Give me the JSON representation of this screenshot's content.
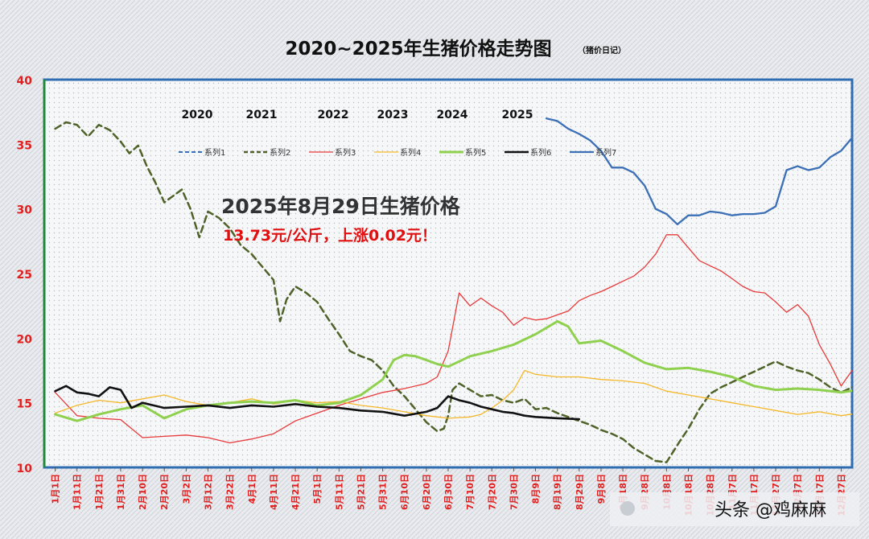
{
  "title": "2020~2025年生猪价格走势图",
  "title_note": "（猪价日记）",
  "announcement": {
    "line1": "2025年8月29日生猪价格",
    "line2": "13.73元/公斤，上涨0.02元！"
  },
  "watermark": "头条 @鸡麻麻",
  "year_labels": [
    "2020",
    "2021",
    "2022",
    "2023",
    "2024",
    "2025"
  ],
  "colors": {
    "background": "#e4e6ea",
    "plot_border": "#2f6db3",
    "y_axis": "#1f8a3a",
    "y_tick_text": "#e01f1f",
    "x_tick_text": "#e01f1f",
    "announce_red": "#e01010"
  },
  "chart_data": {
    "type": "line",
    "ylim": [
      10,
      40
    ],
    "yticks": [
      10,
      15,
      20,
      25,
      30,
      35,
      40
    ],
    "x_labels": [
      "1月1日",
      "1月11日",
      "1月21日",
      "1月31日",
      "2月10日",
      "2月20日",
      "3月2日",
      "3月12日",
      "3月22日",
      "4月1日",
      "4月11日",
      "4月21日",
      "5月1日",
      "5月11日",
      "5月21日",
      "5月31日",
      "6月10日",
      "6月20日",
      "6月30日",
      "7月10日",
      "7月20日",
      "7月30日",
      "8月9日",
      "8月19日",
      "8月29日",
      "9月8日",
      "9月18日",
      "9月28日",
      "10月8日",
      "10月18日",
      "10月28日",
      "11月7日",
      "11月17日",
      "11月27日",
      "12月7日",
      "12月17日",
      "12月27日"
    ],
    "grid": false,
    "legend_position": "top",
    "series": [
      {
        "name": "系列1",
        "color": "#3b6fb6",
        "dash": "6,4",
        "width": 2,
        "x": [],
        "y": []
      },
      {
        "name": "系列2",
        "color": "#4f6228",
        "dash": "8,5",
        "width": 2.5,
        "x": [
          0,
          0.5,
          1,
          1.5,
          2,
          2.5,
          3,
          3.4,
          3.8,
          4.2,
          4.6,
          5,
          5.4,
          5.8,
          6.2,
          6.6,
          7,
          7.5,
          8,
          8.5,
          9,
          9.5,
          10,
          10.3,
          10.6,
          11,
          11.5,
          12,
          12.5,
          13,
          13.5,
          14,
          14.5,
          15,
          15.5,
          16,
          16.5,
          17,
          17.5,
          17.8,
          18,
          18.2,
          18.5,
          19,
          19.5,
          20,
          20.5,
          21,
          21.5,
          22,
          22.5,
          23,
          23.5,
          24,
          24.5,
          25,
          25.5,
          26,
          26.5,
          27,
          27.5,
          28,
          28.3,
          28.6,
          29,
          29.5,
          30,
          30.5,
          31,
          31.5,
          32,
          32.5,
          33,
          33.5,
          34,
          34.5,
          35,
          35.5,
          36,
          36.5,
          36.8
        ],
        "y": [
          36.2,
          36.7,
          36.5,
          35.6,
          36.5,
          36.1,
          35.2,
          34.3,
          34.9,
          33.3,
          32.0,
          30.5,
          31.0,
          31.5,
          30.0,
          27.8,
          29.8,
          29.3,
          28.5,
          27.2,
          26.5,
          25.5,
          24.5,
          21.3,
          23.0,
          24.0,
          23.5,
          22.8,
          21.5,
          20.3,
          19.0,
          18.6,
          18.3,
          17.5,
          16.3,
          15.5,
          14.5,
          13.5,
          12.8,
          13.0,
          14.0,
          16.0,
          16.5,
          16.0,
          15.5,
          15.6,
          15.2,
          15.0,
          15.3,
          14.5,
          14.6,
          14.2,
          13.9,
          13.6,
          13.3,
          12.9,
          12.6,
          12.2,
          11.5,
          11.0,
          10.5,
          10.4,
          11.2,
          12.0,
          13.0,
          14.5,
          15.7,
          16.2,
          16.6,
          17.0,
          17.4,
          17.8,
          18.2,
          17.8,
          17.5,
          17.3,
          16.8,
          16.2,
          15.8,
          16.2,
          16.0
        ]
      },
      {
        "name": "系列3",
        "color": "#e83a3a",
        "dash": "",
        "width": 1.3,
        "x": [
          0,
          1,
          2,
          3,
          4,
          5,
          6,
          7,
          8,
          9,
          10,
          11,
          12,
          13,
          14,
          15,
          16,
          17,
          17.5,
          18,
          18.5,
          19,
          19.5,
          20,
          20.5,
          21,
          21.5,
          22,
          22.5,
          23,
          23.5,
          24,
          24.5,
          25,
          25.5,
          26,
          26.5,
          27,
          27.5,
          28,
          28.5,
          29,
          29.5,
          30,
          30.5,
          31,
          31.5,
          32,
          32.5,
          33,
          33.5,
          34,
          34.5,
          35,
          35.5,
          36,
          36.5,
          36.8
        ],
        "y": [
          15.8,
          14.0,
          13.8,
          13.7,
          12.3,
          12.4,
          12.5,
          12.3,
          11.9,
          12.2,
          12.6,
          13.6,
          14.2,
          14.8,
          15.3,
          15.8,
          16.1,
          16.5,
          17.0,
          19.0,
          23.5,
          22.5,
          23.1,
          22.5,
          22.0,
          21.0,
          21.6,
          21.4,
          21.5,
          21.8,
          22.1,
          22.9,
          23.3,
          23.6,
          24.0,
          24.4,
          24.8,
          25.5,
          26.5,
          28.0,
          28.0,
          27.0,
          26.0,
          25.6,
          25.2,
          24.6,
          24.0,
          23.6,
          23.5,
          22.8,
          22.0,
          22.6,
          21.7,
          19.5,
          18.0,
          16.3,
          17.5,
          16.5
        ]
      },
      {
        "name": "系列4",
        "color": "#f5b82a",
        "dash": "",
        "width": 1.3,
        "x": [
          0,
          1,
          2,
          3,
          4,
          5,
          6,
          7,
          8,
          9,
          10,
          11,
          12,
          13,
          14,
          15,
          16,
          17,
          18,
          19,
          19.5,
          20,
          20.5,
          21,
          21.5,
          22,
          23,
          24,
          25,
          26,
          27,
          28,
          29,
          30,
          31,
          32,
          33,
          34,
          35,
          36,
          36.8
        ],
        "y": [
          14.2,
          14.8,
          15.2,
          15.0,
          15.3,
          15.6,
          15.1,
          14.8,
          15.0,
          15.3,
          14.9,
          15.2,
          15.0,
          15.1,
          14.8,
          14.6,
          14.3,
          14.0,
          13.8,
          13.9,
          14.1,
          14.6,
          15.2,
          16.0,
          17.5,
          17.2,
          17.0,
          17.0,
          16.8,
          16.7,
          16.5,
          15.9,
          15.6,
          15.3,
          15.0,
          14.7,
          14.4,
          14.1,
          14.3,
          14.0,
          14.2
        ]
      },
      {
        "name": "系列5",
        "color": "#8fd14f",
        "dash": "",
        "width": 3,
        "x": [
          0,
          1,
          2,
          3,
          4,
          5,
          6,
          7,
          8,
          9,
          10,
          11,
          12,
          13,
          14,
          15,
          15.5,
          16,
          16.5,
          17,
          17.5,
          18,
          18.5,
          19,
          20,
          21,
          22,
          23,
          23.5,
          24,
          25,
          26,
          27,
          28,
          29,
          30,
          31,
          32,
          33,
          34,
          35,
          36,
          36.8
        ],
        "y": [
          14.1,
          13.6,
          14.1,
          14.5,
          14.8,
          13.8,
          14.5,
          14.8,
          15.0,
          15.1,
          15.0,
          15.2,
          14.8,
          15.0,
          15.6,
          16.8,
          18.3,
          18.7,
          18.6,
          18.3,
          18.0,
          17.8,
          18.2,
          18.6,
          19.0,
          19.5,
          20.3,
          21.3,
          20.9,
          19.6,
          19.8,
          19.0,
          18.1,
          17.6,
          17.7,
          17.4,
          17.0,
          16.3,
          16.0,
          16.1,
          16.0,
          15.8,
          16.0
        ]
      },
      {
        "name": "系列6",
        "color": "#111111",
        "dash": "",
        "width": 2.6,
        "x": [
          0,
          0.5,
          1,
          1.5,
          2,
          2.5,
          3,
          3.5,
          4,
          4.5,
          5,
          6,
          7,
          8,
          9,
          10,
          11,
          12,
          13,
          14,
          15,
          16,
          17,
          17.5,
          18,
          18.5,
          19,
          19.5,
          20,
          20.5,
          21,
          21.5,
          22,
          23,
          24
        ],
        "y": [
          15.9,
          16.3,
          15.8,
          15.7,
          15.5,
          16.2,
          16.0,
          14.6,
          15.0,
          14.8,
          14.6,
          14.7,
          14.8,
          14.6,
          14.8,
          14.7,
          14.9,
          14.7,
          14.6,
          14.4,
          14.3,
          14.0,
          14.3,
          14.6,
          15.5,
          15.2,
          15.0,
          14.7,
          14.5,
          14.3,
          14.2,
          14.0,
          13.9,
          13.8,
          13.73
        ]
      },
      {
        "name": "系列7",
        "color": "#3b6fb6",
        "dash": "",
        "width": 2.3,
        "x": [
          22.5,
          23,
          23.5,
          24,
          24.5,
          25,
          25.5,
          26,
          26.5,
          27,
          27.5,
          28,
          28.5,
          29,
          29.5,
          30,
          30.5,
          31,
          31.5,
          32,
          32.5,
          33,
          33.5,
          34,
          34.5,
          35,
          35.5,
          36,
          36.5,
          36.8
        ],
        "y": [
          37.0,
          36.8,
          36.2,
          35.8,
          35.3,
          34.5,
          33.2,
          33.2,
          32.8,
          31.8,
          30.0,
          29.6,
          28.8,
          29.5,
          29.5,
          29.8,
          29.7,
          29.5,
          29.6,
          29.6,
          29.7,
          30.2,
          33.0,
          33.3,
          33.0,
          33.2,
          34.0,
          34.5,
          35.5,
          35.4
        ]
      }
    ]
  }
}
